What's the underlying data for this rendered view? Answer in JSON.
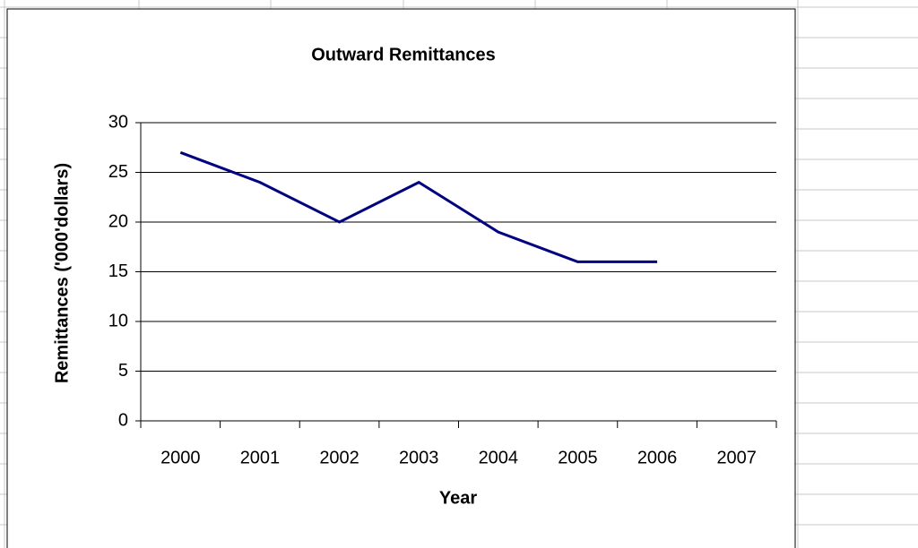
{
  "chart_data": {
    "type": "line",
    "title": "Outward Remittances",
    "x_label": "Year",
    "y_label": "Remittances ('000'dollars)",
    "categories": [
      "2000",
      "2001",
      "2002",
      "2003",
      "2004",
      "2005",
      "2006",
      "2007"
    ],
    "series": [
      {
        "name": "Remittances",
        "color": "#000080",
        "values": [
          27,
          24,
          20,
          24,
          19,
          16,
          16,
          null
        ]
      }
    ],
    "ylim": [
      0,
      30
    ],
    "yticks": [
      0,
      5,
      10,
      15,
      20,
      25,
      30
    ],
    "grid": true
  }
}
